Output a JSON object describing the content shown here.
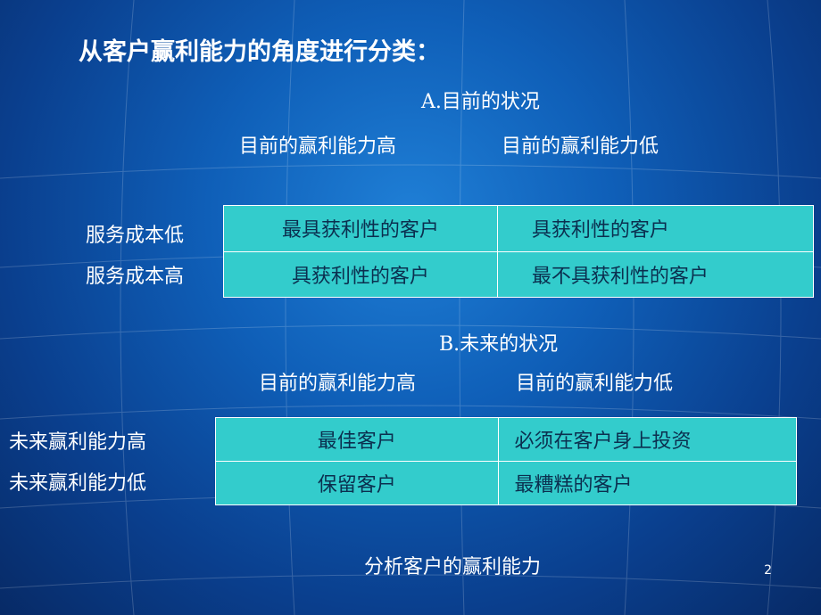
{
  "title": "从客户赢利能力的角度进行分类：",
  "section_a": {
    "heading": "A.目前的状况",
    "col_headers": [
      "目前的赢利能力高",
      "目前的赢利能力低"
    ],
    "row_labels": [
      "服务成本低",
      "服务成本高"
    ],
    "cells": [
      [
        "最具获利性的客户",
        "具获利性的客户"
      ],
      [
        "具获利性的客户",
        "最不具获利性的客户"
      ]
    ]
  },
  "section_b": {
    "heading": "B.未来的状况",
    "col_headers": [
      "目前的赢利能力高",
      "目前的赢利能力低"
    ],
    "row_labels": [
      "未来赢利能力高",
      "未来赢利能力低"
    ],
    "cells": [
      [
        "最佳客户",
        "必须在客户身上投资"
      ],
      [
        "保留客户",
        "最糟糕的客户"
      ]
    ]
  },
  "caption": "分析客户的赢利能力",
  "page_number": "2",
  "colors": {
    "background": "#0f5fb8",
    "table_fill": "#33cccc",
    "text": "#ffffff"
  }
}
